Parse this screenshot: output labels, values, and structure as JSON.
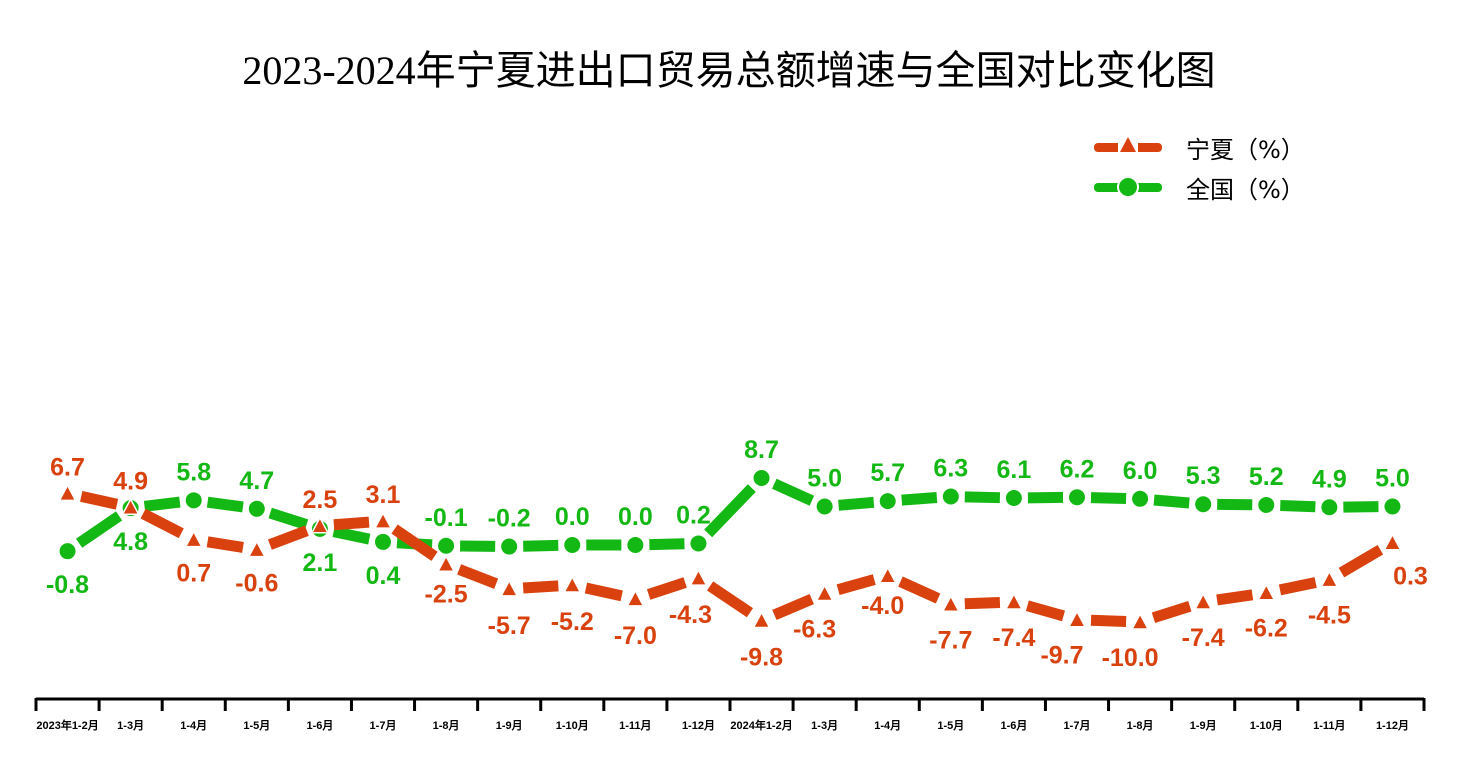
{
  "chart_data": {
    "type": "line",
    "title": "2023-2024年宁夏进出口贸易总额增速与全国对比变化图",
    "xlabel": "",
    "ylabel": "",
    "categories": [
      "2023年1-2月",
      "1-3月",
      "1-4月",
      "1-5月",
      "1-6月",
      "1-7月",
      "1-8月",
      "1-9月",
      "1-10月",
      "1-11月",
      "1-12月",
      "2024年1-2月",
      "1-3月",
      "1-4月",
      "1-5月",
      "1-6月",
      "1-7月",
      "1-8月",
      "1-9月",
      "1-10月",
      "1-11月",
      "1-12月"
    ],
    "series": [
      {
        "name": "宁夏（%）",
        "color": "#D9410E",
        "marker": "triangle",
        "values": [
          6.7,
          4.9,
          0.7,
          -0.6,
          2.5,
          3.1,
          -2.5,
          -5.7,
          -5.2,
          -7.0,
          -4.3,
          -9.8,
          -6.3,
          -4.0,
          -7.7,
          -7.4,
          -9.7,
          -10.0,
          -7.4,
          -6.2,
          -4.5,
          0.3
        ]
      },
      {
        "name": "全国（%）",
        "color": "#14B814",
        "marker": "circle",
        "values": [
          -0.8,
          4.8,
          5.8,
          4.7,
          2.1,
          0.4,
          -0.1,
          -0.2,
          0.0,
          0.0,
          0.2,
          8.7,
          5.0,
          5.7,
          6.3,
          6.1,
          6.2,
          6.0,
          5.3,
          5.2,
          4.9,
          5.0
        ]
      }
    ],
    "legend_position": "top-right",
    "grid": false,
    "y_axis_visible": false
  },
  "title": "2023-2024年宁夏进出口贸易总额增速与全国对比变化图",
  "legend": [
    {
      "label": "宁夏（%）",
      "color": "#D9410E"
    },
    {
      "label": "全国（%）",
      "color": "#14B814"
    }
  ]
}
